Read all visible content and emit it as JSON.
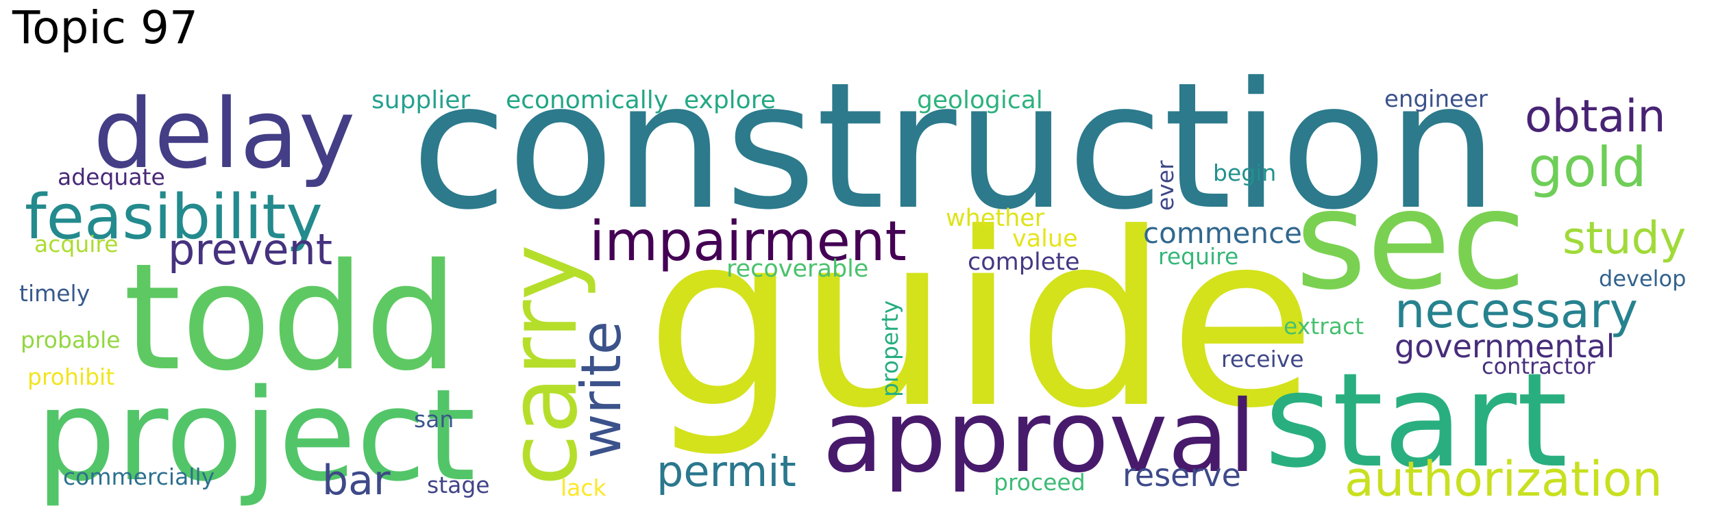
{
  "title": "Topic 97",
  "words": [
    {
      "text": "construction",
      "color": "#2c7a8c"
    },
    {
      "text": "guide",
      "color": "#d3e21b"
    },
    {
      "text": "todd",
      "color": "#5ec962"
    },
    {
      "text": "sec",
      "color": "#7ad151"
    },
    {
      "text": "start",
      "color": "#29af7f"
    },
    {
      "text": "delay",
      "color": "#433e85"
    },
    {
      "text": "project",
      "color": "#52c569"
    },
    {
      "text": "approval",
      "color": "#481a6c"
    },
    {
      "text": "carry",
      "color": "#b5de2b"
    },
    {
      "text": "feasibility",
      "color": "#238a8d"
    },
    {
      "text": "impairment",
      "color": "#440154"
    },
    {
      "text": "write",
      "color": "#3b528b"
    },
    {
      "text": "gold",
      "color": "#6ece58"
    },
    {
      "text": "obtain",
      "color": "#482374"
    },
    {
      "text": "necessary",
      "color": "#26828e"
    },
    {
      "text": "study",
      "color": "#a0da39"
    },
    {
      "text": "authorization",
      "color": "#c8e020"
    },
    {
      "text": "permit",
      "color": "#2a788e"
    },
    {
      "text": "prevent",
      "color": "#46327e"
    },
    {
      "text": "bar",
      "color": "#3e4989"
    },
    {
      "text": "governmental",
      "color": "#472d7b"
    },
    {
      "text": "commence",
      "color": "#31688e"
    },
    {
      "text": "reserve",
      "color": "#3e4a89"
    },
    {
      "text": "supplier",
      "color": "#25a18e"
    },
    {
      "text": "economically",
      "color": "#21a685"
    },
    {
      "text": "explore",
      "color": "#22a884"
    },
    {
      "text": "geological",
      "color": "#2db27d"
    },
    {
      "text": "engineer",
      "color": "#3b528b"
    },
    {
      "text": "adequate",
      "color": "#482878"
    },
    {
      "text": "begin",
      "color": "#21918c"
    },
    {
      "text": "ever",
      "color": "#3f4788"
    },
    {
      "text": "whether",
      "color": "#dde318"
    },
    {
      "text": "value",
      "color": "#e5e419"
    },
    {
      "text": "complete",
      "color": "#443983"
    },
    {
      "text": "require",
      "color": "#35b779"
    },
    {
      "text": "recoverable",
      "color": "#4ac16d"
    },
    {
      "text": "develop",
      "color": "#33638d"
    },
    {
      "text": "acquire",
      "color": "#addc30"
    },
    {
      "text": "timely",
      "color": "#38598c"
    },
    {
      "text": "extract",
      "color": "#46c06f"
    },
    {
      "text": "probable",
      "color": "#93d741"
    },
    {
      "text": "property",
      "color": "#27ad81"
    },
    {
      "text": "receive",
      "color": "#3f4788"
    },
    {
      "text": "contractor",
      "color": "#472f7d"
    },
    {
      "text": "prohibit",
      "color": "#f1e51d"
    },
    {
      "text": "san",
      "color": "#39568c"
    },
    {
      "text": "commercially",
      "color": "#2d708e"
    },
    {
      "text": "stage",
      "color": "#414487"
    },
    {
      "text": "lack",
      "color": "#fde725"
    },
    {
      "text": "proceed",
      "color": "#3bbb75"
    }
  ]
}
